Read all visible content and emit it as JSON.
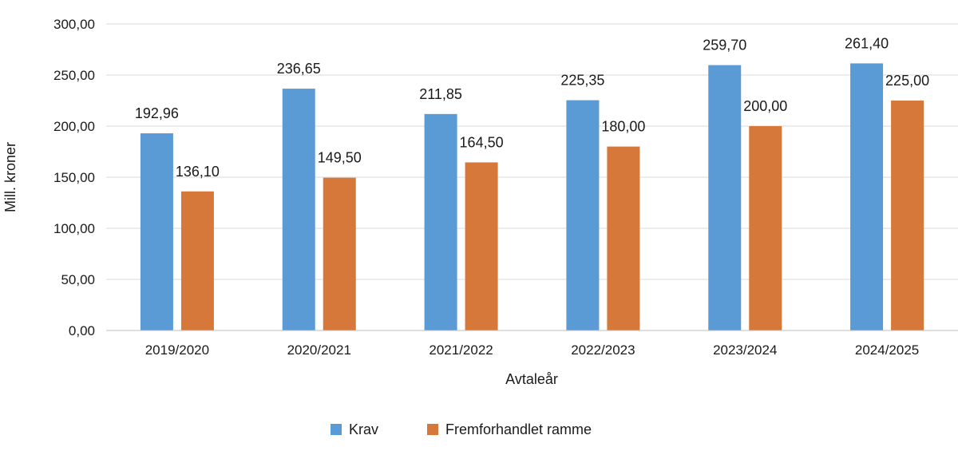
{
  "chart_data": {
    "type": "bar",
    "xlabel": "Avtaleår",
    "ylabel": "Mill. kroner",
    "ylim": [
      0,
      300
    ],
    "yticks": [
      "0,00",
      "50,00",
      "100,00",
      "150,00",
      "200,00",
      "250,00",
      "300,00"
    ],
    "grid": true,
    "legend_position": "bottom",
    "categories": [
      "2019/2020",
      "2020/2021",
      "2021/2022",
      "2022/2023",
      "2023/2024",
      "2024/2025"
    ],
    "series": [
      {
        "name": "Krav",
        "color": "#5b9bd5",
        "values": [
          192.96,
          236.65,
          211.85,
          225.35,
          259.7,
          261.4
        ],
        "labels": [
          "192,96",
          "236,65",
          "211,85",
          "225,35",
          "259,70",
          "261,40"
        ]
      },
      {
        "name": "Fremforhandlet ramme",
        "color": "#d6783a",
        "values": [
          136.1,
          149.5,
          164.5,
          180.0,
          200.0,
          225.0
        ],
        "labels": [
          "136,10",
          "149,50",
          "164,50",
          "180,00",
          "200,00",
          "225,00"
        ]
      }
    ]
  }
}
